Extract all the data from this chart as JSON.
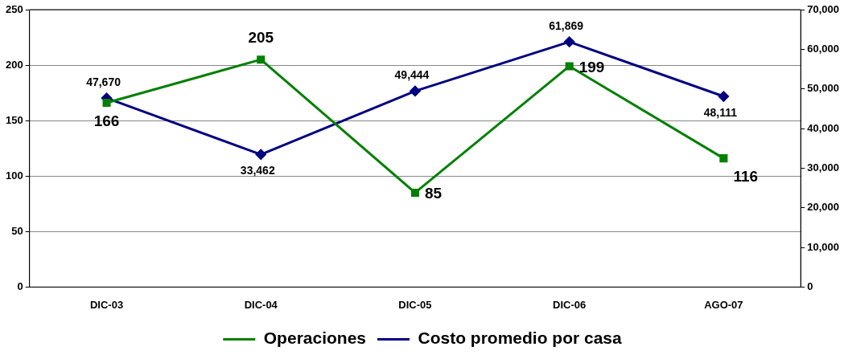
{
  "chart_data": {
    "type": "line",
    "categories": [
      "DIC-03",
      "DIC-04",
      "DIC-05",
      "DIC-06",
      "AGO-07"
    ],
    "series": [
      {
        "name": "Operaciones",
        "color": "#008000",
        "values": [
          166,
          205,
          85,
          199,
          116
        ],
        "marker": "square"
      },
      {
        "name": "Costo promedio por casa",
        "color": "#000080",
        "values": [
          47670,
          33462,
          49444,
          61869,
          48111
        ],
        "value_labels": [
          "47,670",
          "33,462",
          "49,444",
          "61,869",
          "48,111"
        ],
        "axis": "y2",
        "marker": "diamond"
      }
    ],
    "ylim": [
      0,
      250
    ],
    "yticks": [
      0,
      50,
      100,
      150,
      200,
      250
    ],
    "y2lim": [
      0,
      70000
    ],
    "y2ticks": [
      {
        "value": 0,
        "label": "0"
      },
      {
        "value": 10000,
        "label": "10,000"
      },
      {
        "value": 20000,
        "label": "20,000"
      },
      {
        "value": 30000,
        "label": "30,000"
      },
      {
        "value": 40000,
        "label": "40,000"
      },
      {
        "value": 50000,
        "label": "50,000"
      },
      {
        "value": 60000,
        "label": "60,000"
      },
      {
        "value": 70000,
        "label": "70,000"
      }
    ],
    "grid": "y",
    "legend": "bottom",
    "data_labels": true,
    "line_style": "solid"
  }
}
